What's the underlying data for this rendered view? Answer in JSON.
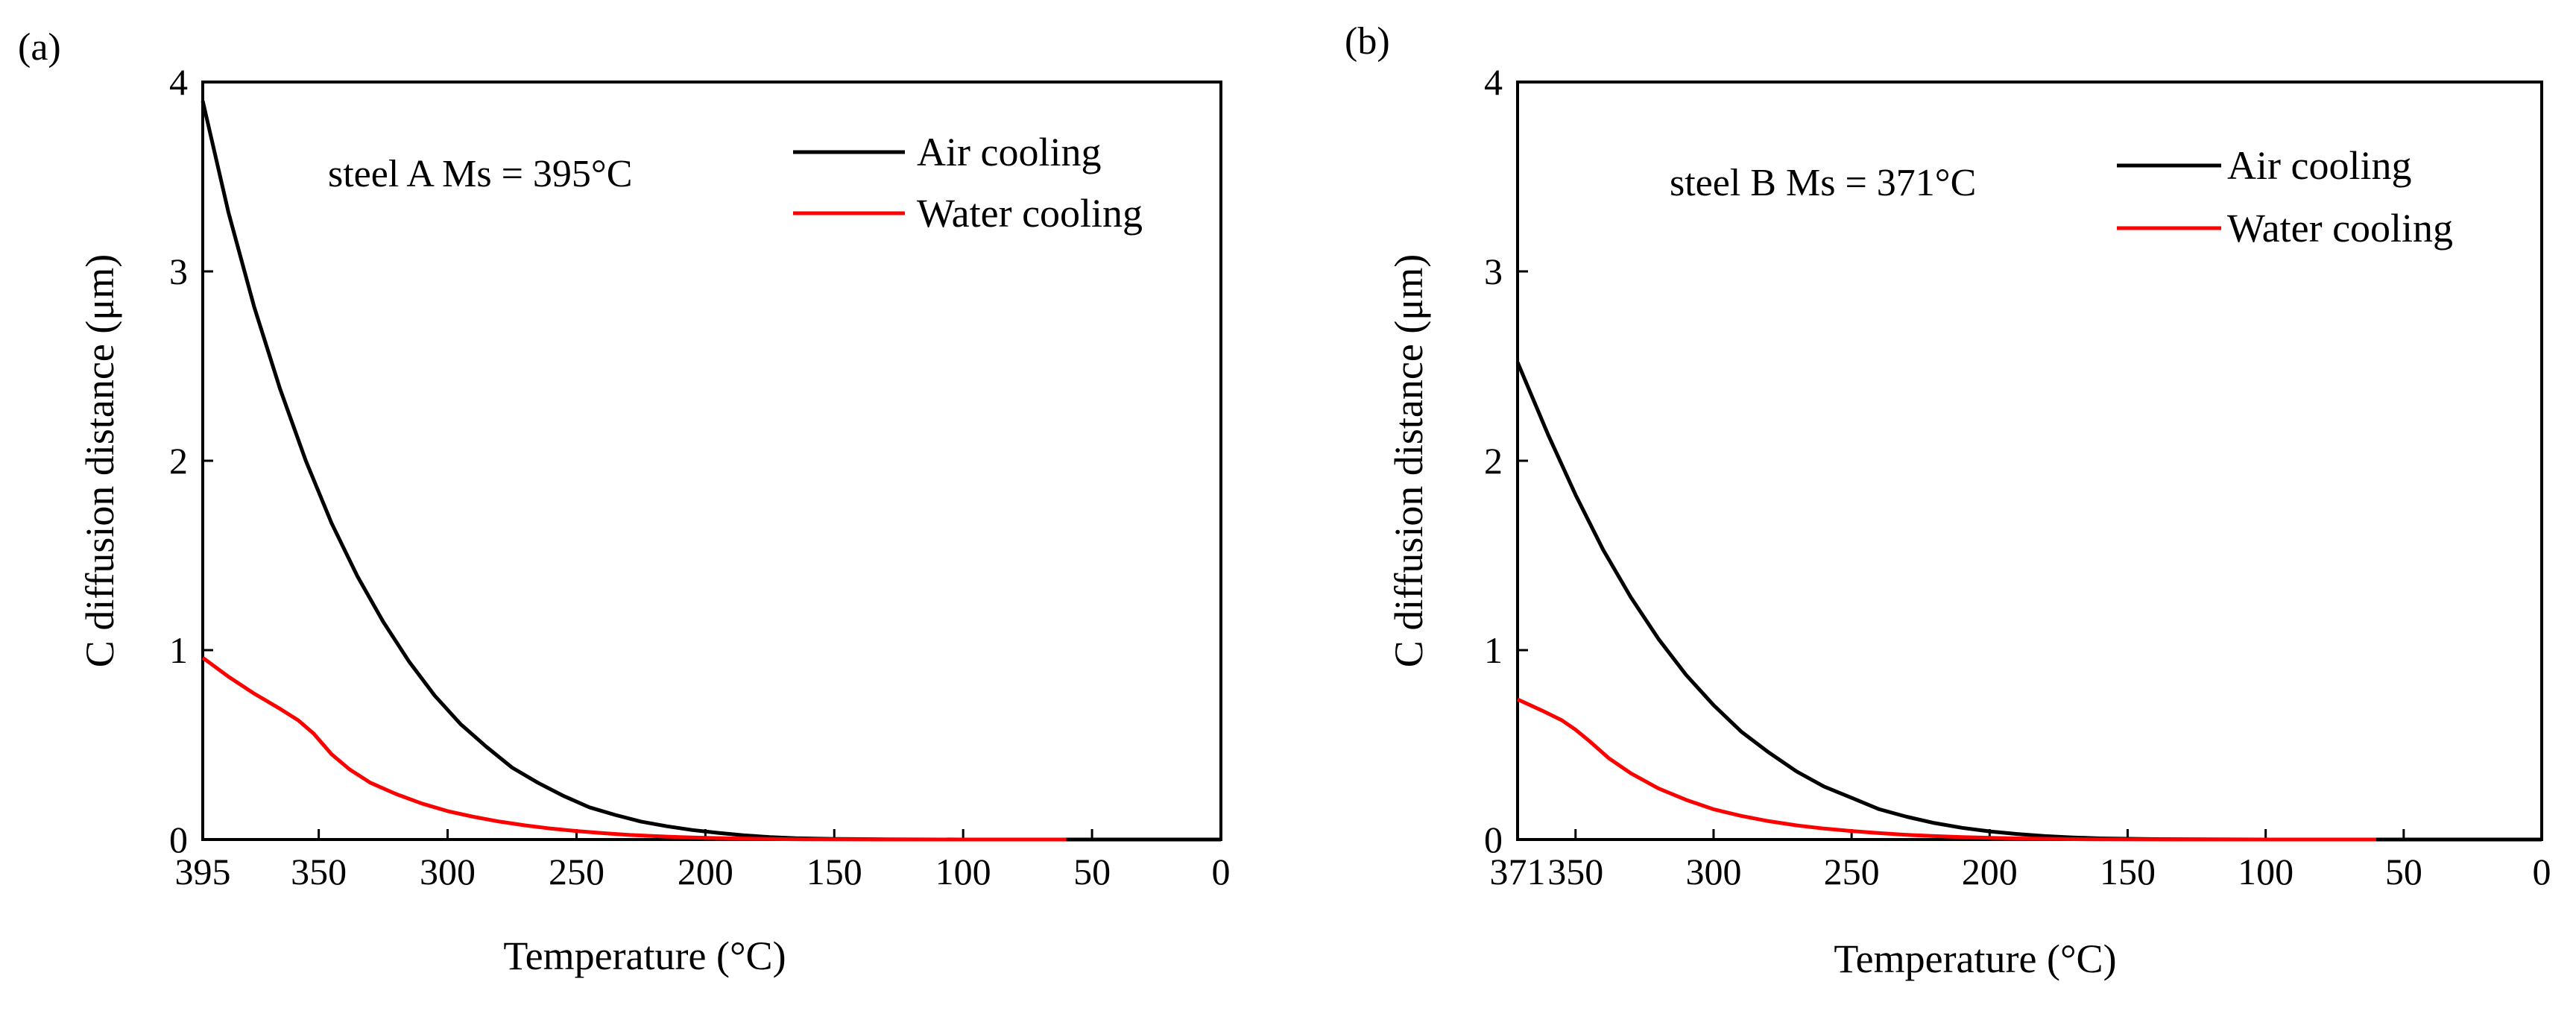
{
  "figure": {
    "background": "#ffffff",
    "axis_color": "#000000"
  },
  "chart_data": [
    {
      "type": "line",
      "panel_label": "(a)",
      "annotation": "steel A Ms =  395°C",
      "xlabel": "Temperature (°C)",
      "ylabel": "C diffusion distance (μm)",
      "xlim": [
        395,
        0
      ],
      "ylim": [
        0,
        4
      ],
      "xticks": [
        395,
        350,
        300,
        250,
        200,
        150,
        100,
        50,
        0
      ],
      "yticks": [
        0,
        1,
        2,
        3,
        4
      ],
      "legend_position": "top-right",
      "series": [
        {
          "name": "Air cooling",
          "color": "#000000",
          "x": [
            395,
            385,
            375,
            365,
            355,
            345,
            335,
            325,
            315,
            305,
            295,
            285,
            275,
            265,
            255,
            245,
            235,
            225,
            215,
            205,
            195,
            185,
            175,
            165,
            150,
            130,
            100,
            50,
            0
          ],
          "y": [
            3.9,
            3.31,
            2.81,
            2.38,
            2.0,
            1.67,
            1.39,
            1.15,
            0.94,
            0.76,
            0.61,
            0.49,
            0.38,
            0.3,
            0.23,
            0.17,
            0.13,
            0.095,
            0.07,
            0.05,
            0.035,
            0.022,
            0.013,
            0.007,
            0.003,
            0.001,
            0.0,
            0.0,
            0.0
          ]
        },
        {
          "name": "Water cooling",
          "color": "#ff0000",
          "x": [
            395,
            385,
            375,
            365,
            358,
            352,
            345,
            338,
            330,
            320,
            310,
            300,
            290,
            280,
            270,
            260,
            250,
            240,
            230,
            220,
            210,
            200,
            190,
            180,
            170,
            160,
            130,
            100,
            60
          ],
          "y": [
            0.96,
            0.86,
            0.77,
            0.69,
            0.63,
            0.56,
            0.45,
            0.37,
            0.3,
            0.24,
            0.19,
            0.15,
            0.12,
            0.095,
            0.075,
            0.058,
            0.045,
            0.034,
            0.025,
            0.018,
            0.013,
            0.009,
            0.006,
            0.004,
            0.002,
            0.001,
            0.0,
            0.0,
            0.0
          ]
        }
      ]
    },
    {
      "type": "line",
      "panel_label": "(b)",
      "annotation": "steel B Ms = 371°C",
      "xlabel": "Temperature (°C)",
      "ylabel": "C diffusion distance (μm)",
      "xlim": [
        371,
        0
      ],
      "ylim": [
        0,
        4
      ],
      "xticks": [
        371,
        350,
        300,
        250,
        200,
        150,
        100,
        50,
        0
      ],
      "yticks": [
        0,
        1,
        2,
        3,
        4
      ],
      "legend_position": "top-right",
      "series": [
        {
          "name": "Air cooling",
          "color": "#000000",
          "x": [
            371,
            360,
            350,
            340,
            330,
            320,
            310,
            300,
            290,
            280,
            270,
            260,
            250,
            240,
            230,
            220,
            210,
            200,
            190,
            180,
            170,
            160,
            140,
            100,
            50,
            0
          ],
          "y": [
            2.52,
            2.14,
            1.82,
            1.53,
            1.28,
            1.06,
            0.87,
            0.71,
            0.57,
            0.46,
            0.36,
            0.28,
            0.22,
            0.16,
            0.12,
            0.087,
            0.062,
            0.043,
            0.029,
            0.018,
            0.011,
            0.006,
            0.002,
            0.0,
            0.0,
            0.0
          ]
        },
        {
          "name": "Water cooling",
          "color": "#ff0000",
          "x": [
            371,
            362,
            355,
            350,
            345,
            338,
            330,
            320,
            310,
            300,
            290,
            280,
            270,
            260,
            250,
            240,
            230,
            220,
            210,
            200,
            190,
            180,
            170,
            160,
            130,
            100,
            60
          ],
          "y": [
            0.74,
            0.68,
            0.63,
            0.58,
            0.52,
            0.43,
            0.35,
            0.27,
            0.21,
            0.16,
            0.125,
            0.097,
            0.075,
            0.058,
            0.045,
            0.034,
            0.025,
            0.018,
            0.013,
            0.009,
            0.006,
            0.004,
            0.002,
            0.001,
            0.0,
            0.0,
            0.0
          ]
        }
      ]
    }
  ]
}
